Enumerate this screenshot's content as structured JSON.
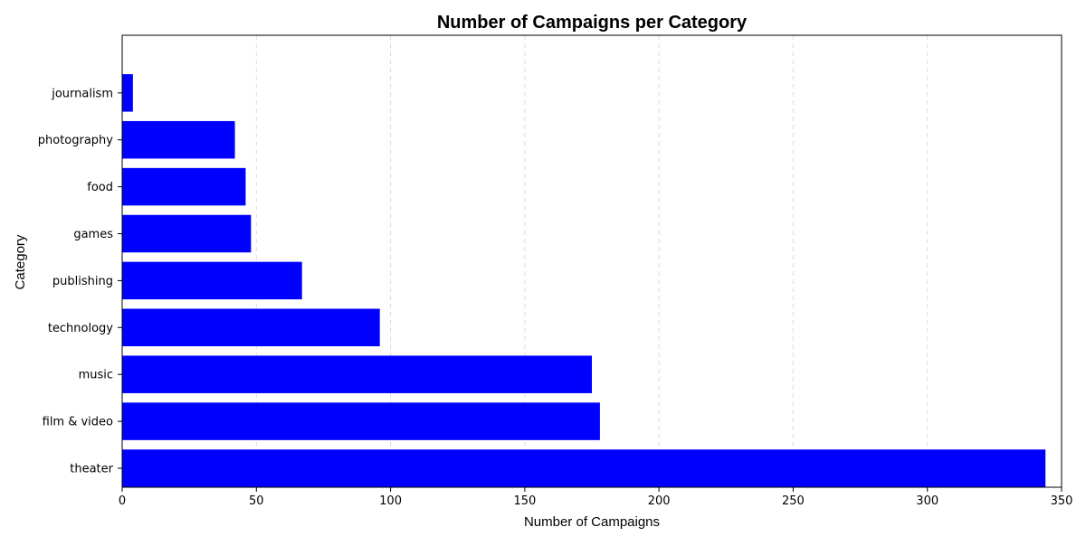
{
  "chart_data": {
    "type": "bar",
    "orientation": "horizontal",
    "title": "Number of Campaigns per Category",
    "xlabel": "Number of Campaigns",
    "ylabel": "Category",
    "categories": [
      "theater",
      "film & video",
      "music",
      "technology",
      "publishing",
      "games",
      "food",
      "photography",
      "journalism"
    ],
    "values": [
      344,
      178,
      175,
      96,
      67,
      48,
      46,
      42,
      4
    ],
    "xlim": [
      0,
      350
    ],
    "xticks": [
      0,
      50,
      100,
      150,
      200,
      250,
      300,
      350
    ],
    "grid": "x-dashed",
    "bar_color": "#0000ff",
    "legend": "none"
  }
}
